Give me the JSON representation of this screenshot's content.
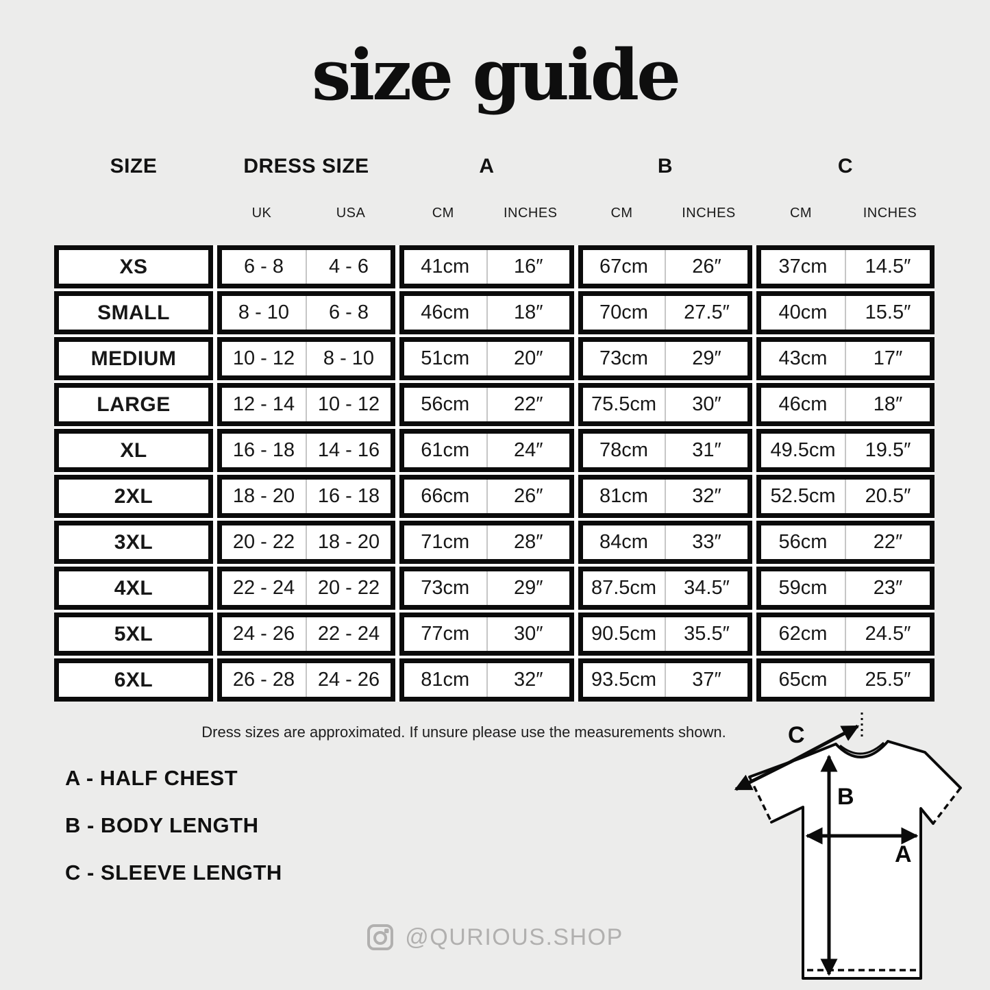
{
  "page": {
    "background": "#ececeb",
    "title": "size guide",
    "colors": {
      "table_border": "#0b0b0b",
      "cell_background": "#ffffff",
      "divider_gray": "#c6c6c6",
      "social_gray": "#b1b0af"
    }
  },
  "chart_data": {
    "type": "table",
    "title": "size guide",
    "group_headers": [
      "SIZE",
      "DRESS SIZE",
      "A",
      "B",
      "C"
    ],
    "sub_headers": [
      [
        "UK",
        "USA"
      ],
      [
        "CM",
        "INCHES"
      ],
      [
        "CM",
        "INCHES"
      ],
      [
        "CM",
        "INCHES"
      ]
    ],
    "rows": [
      {
        "size": "XS",
        "dress": [
          "6 - 8",
          "4 - 6"
        ],
        "a": [
          "41cm",
          "16″"
        ],
        "b": [
          "67cm",
          "26″"
        ],
        "c": [
          "37cm",
          "14.5″"
        ]
      },
      {
        "size": "SMALL",
        "dress": [
          "8 - 10",
          "6 - 8"
        ],
        "a": [
          "46cm",
          "18″"
        ],
        "b": [
          "70cm",
          "27.5″"
        ],
        "c": [
          "40cm",
          "15.5″"
        ]
      },
      {
        "size": "MEDIUM",
        "dress": [
          "10 - 12",
          "8 - 10"
        ],
        "a": [
          "51cm",
          "20″"
        ],
        "b": [
          "73cm",
          "29″"
        ],
        "c": [
          "43cm",
          "17″"
        ]
      },
      {
        "size": "LARGE",
        "dress": [
          "12 - 14",
          "10 - 12"
        ],
        "a": [
          "56cm",
          "22″"
        ],
        "b": [
          "75.5cm",
          "30″"
        ],
        "c": [
          "46cm",
          "18″"
        ]
      },
      {
        "size": "XL",
        "dress": [
          "16 - 18",
          "14 - 16"
        ],
        "a": [
          "61cm",
          "24″"
        ],
        "b": [
          "78cm",
          "31″"
        ],
        "c": [
          "49.5cm",
          "19.5″"
        ]
      },
      {
        "size": "2XL",
        "dress": [
          "18 - 20",
          "16 - 18"
        ],
        "a": [
          "66cm",
          "26″"
        ],
        "b": [
          "81cm",
          "32″"
        ],
        "c": [
          "52.5cm",
          "20.5″"
        ]
      },
      {
        "size": "3XL",
        "dress": [
          "20 - 22",
          "18 - 20"
        ],
        "a": [
          "71cm",
          "28″"
        ],
        "b": [
          "84cm",
          "33″"
        ],
        "c": [
          "56cm",
          "22″"
        ]
      },
      {
        "size": "4XL",
        "dress": [
          "22 - 24",
          "20 - 22"
        ],
        "a": [
          "73cm",
          "29″"
        ],
        "b": [
          "87.5cm",
          "34.5″"
        ],
        "c": [
          "59cm",
          "23″"
        ]
      },
      {
        "size": "5XL",
        "dress": [
          "24 - 26",
          "22 - 24"
        ],
        "a": [
          "77cm",
          "30″"
        ],
        "b": [
          "90.5cm",
          "35.5″"
        ],
        "c": [
          "62cm",
          "24.5″"
        ]
      },
      {
        "size": "6XL",
        "dress": [
          "26 - 28",
          "24 - 26"
        ],
        "a": [
          "81cm",
          "32″"
        ],
        "b": [
          "93.5cm",
          "37″"
        ],
        "c": [
          "65cm",
          "25.5″"
        ]
      }
    ]
  },
  "note": "Dress sizes are approximated. If unsure please use the measurements shown.",
  "legend": [
    "A - HALF CHEST",
    "B - BODY LENGTH",
    "C - SLEEVE LENGTH"
  ],
  "social": {
    "handle": "@QURIOUS.SHOP",
    "icon": "instagram-icon"
  },
  "diagram": {
    "labels": {
      "a": "A",
      "b": "B",
      "c": "C"
    }
  }
}
